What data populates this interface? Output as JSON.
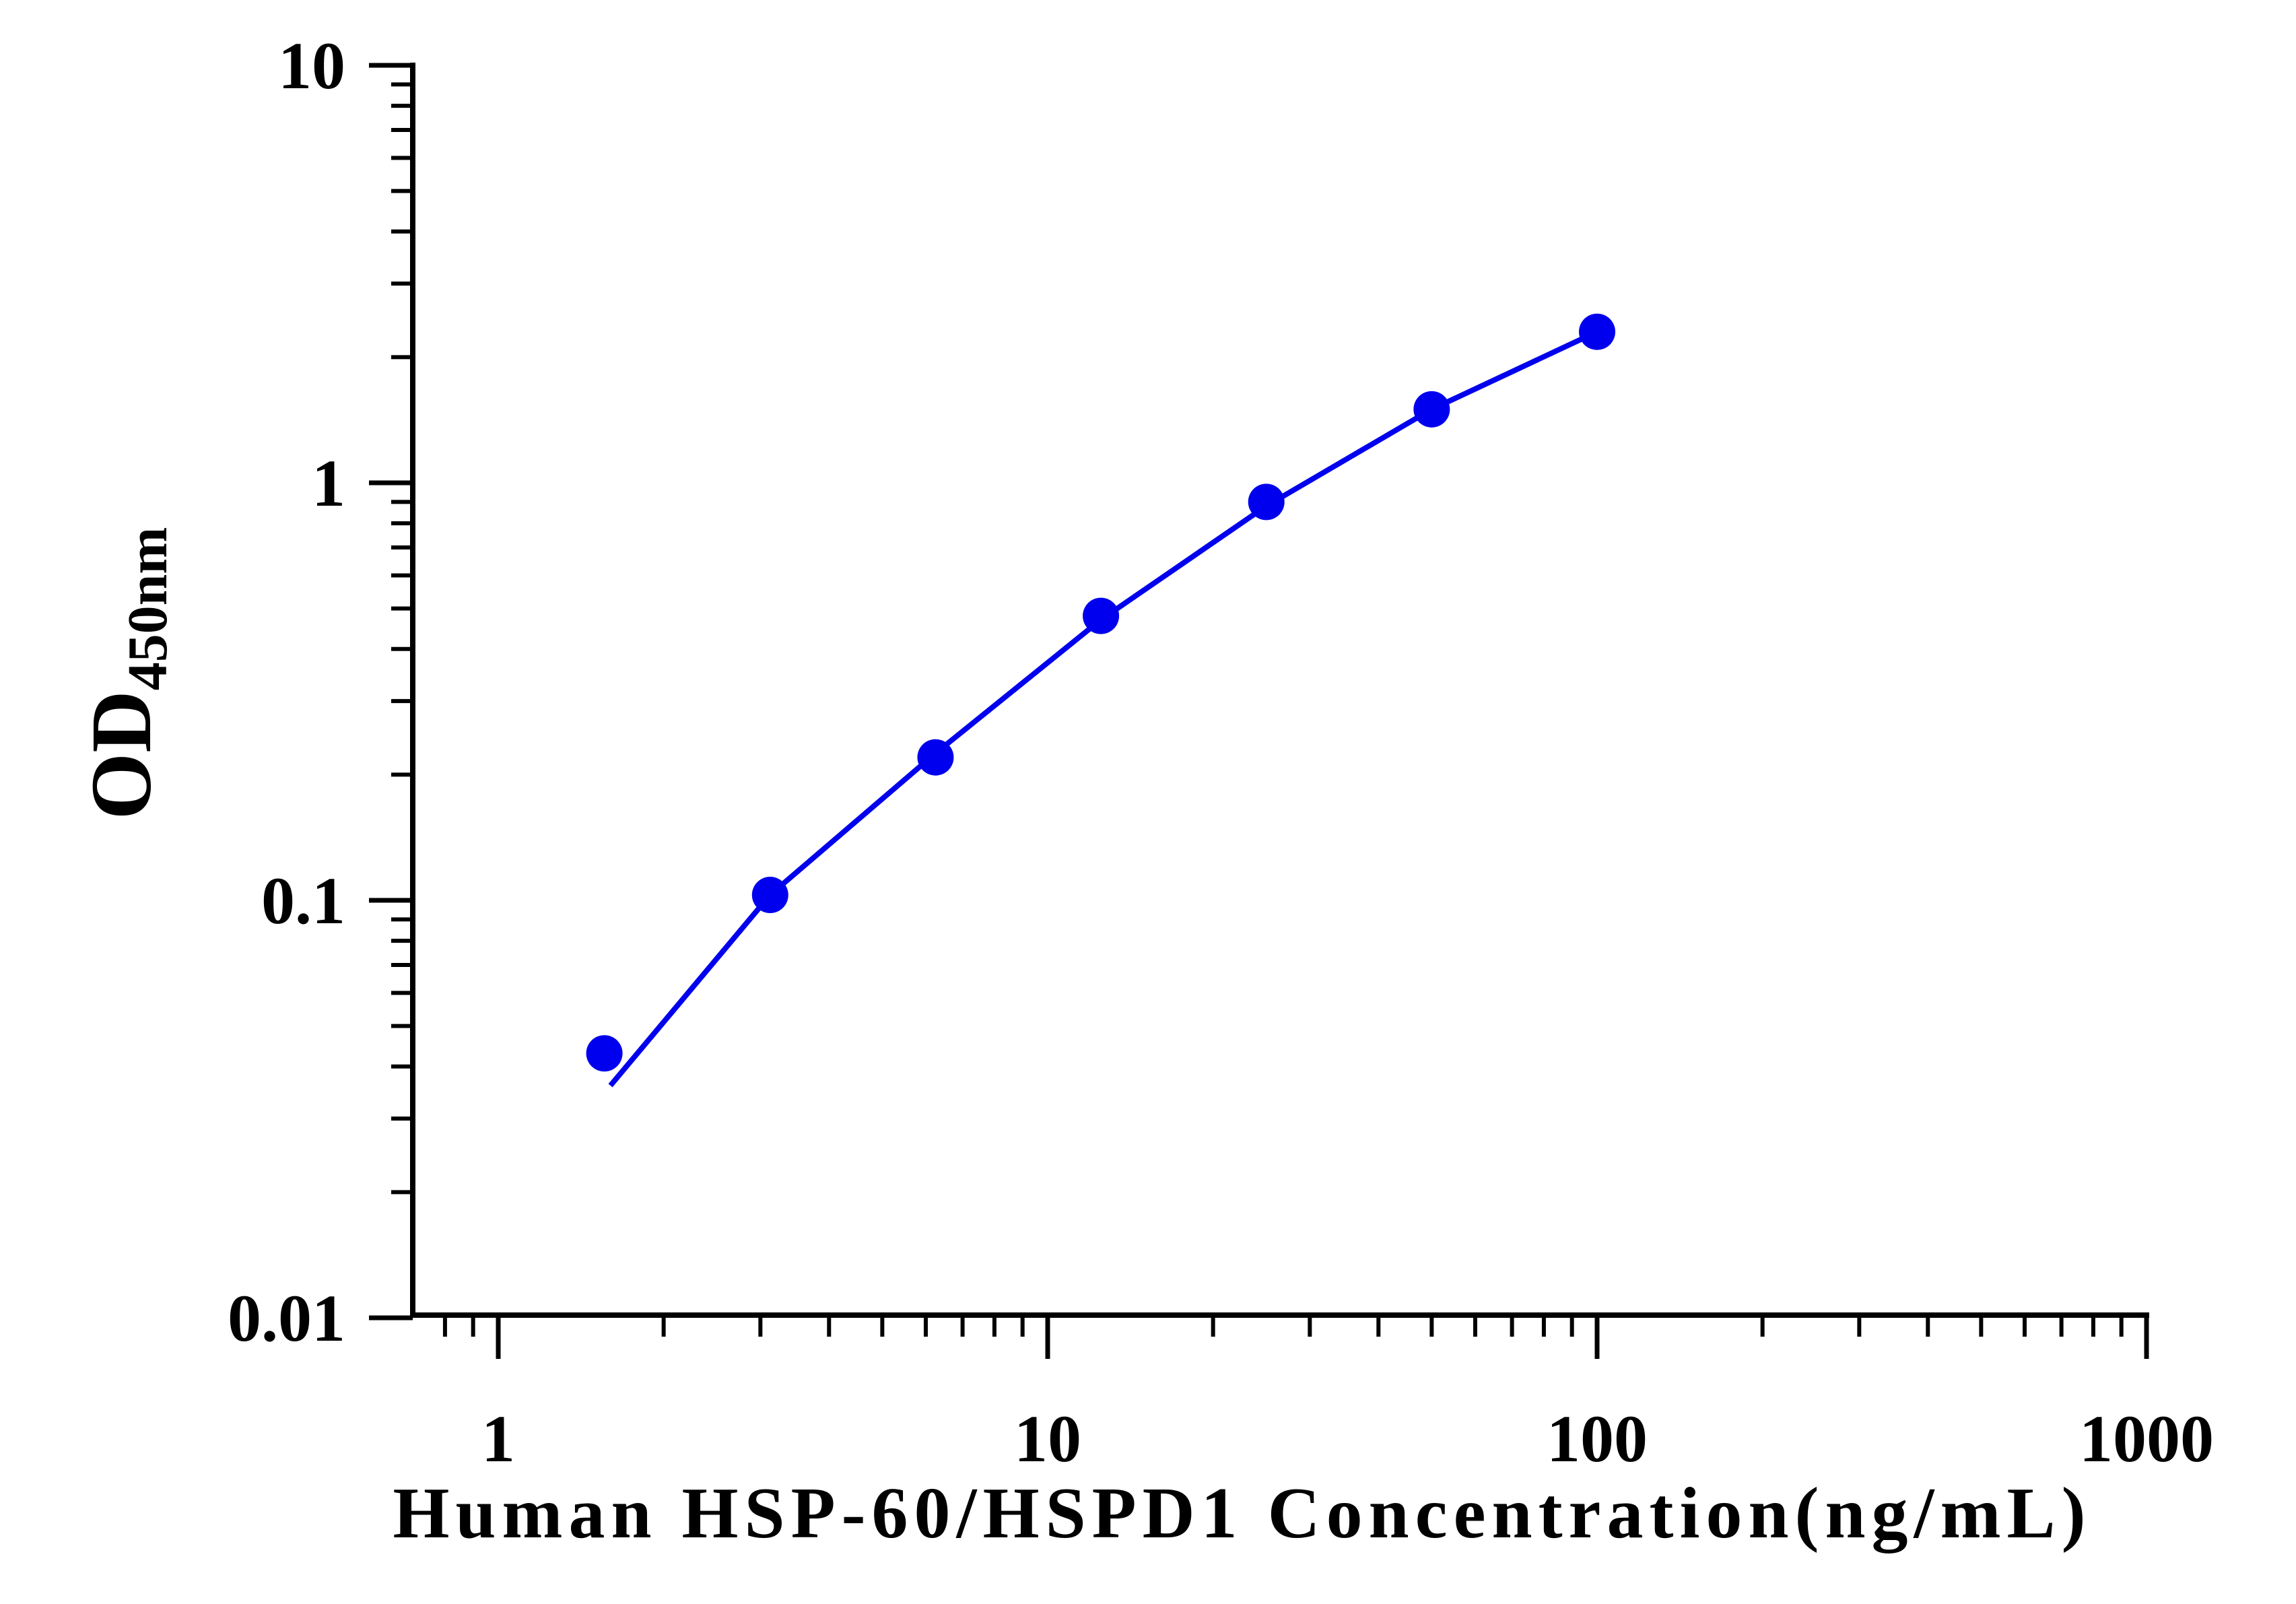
{
  "chart_data": {
    "type": "line",
    "x_scale": "log",
    "y_scale": "log",
    "xlim": [
      0.68,
      1000
    ],
    "ylim": [
      0.01,
      10
    ],
    "x_ticks": [
      1,
      10,
      100,
      1000
    ],
    "x_tick_labels": [
      "1",
      "10",
      "100",
      "1000"
    ],
    "y_ticks": [
      0.01,
      0.1,
      1,
      10
    ],
    "y_tick_labels": [
      "0.01",
      "0.1",
      "1",
      "10"
    ],
    "xlabel": "Human HSP-60/HSPD1 Concentration(ng/mL)",
    "ylabel_main": "OD",
    "ylabel_sub": "450nm",
    "grid": false,
    "series": [
      {
        "color": "#0000ee",
        "points": [
          {
            "x": 1.56,
            "y": 0.043
          },
          {
            "x": 3.125,
            "y": 0.103
          },
          {
            "x": 6.25,
            "y": 0.22
          },
          {
            "x": 12.5,
            "y": 0.48
          },
          {
            "x": 25,
            "y": 0.9
          },
          {
            "x": 50,
            "y": 1.5
          },
          {
            "x": 100,
            "y": 2.3
          }
        ],
        "fit": [
          {
            "x": 1.6,
            "y": 0.036
          },
          {
            "x": 3.125,
            "y": 0.103
          },
          {
            "x": 6.25,
            "y": 0.225
          },
          {
            "x": 12.5,
            "y": 0.47
          },
          {
            "x": 25,
            "y": 0.88
          },
          {
            "x": 50,
            "y": 1.5
          },
          {
            "x": 100,
            "y": 2.3
          }
        ]
      }
    ]
  }
}
